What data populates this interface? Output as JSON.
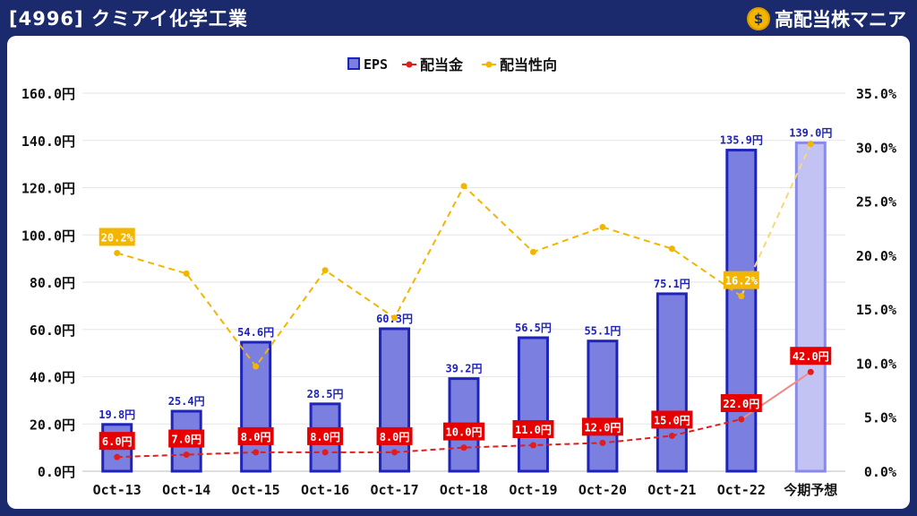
{
  "header": {
    "title": "[4996] クミアイ化学工業",
    "brand": "高配当株マニア",
    "brand_icon": "money-bag-icon"
  },
  "chart_data": {
    "type": "bar",
    "categories": [
      "Oct-13",
      "Oct-14",
      "Oct-15",
      "Oct-16",
      "Oct-17",
      "Oct-18",
      "Oct-19",
      "Oct-20",
      "Oct-21",
      "Oct-22",
      "今期予想"
    ],
    "series": [
      {
        "name": "EPS",
        "type": "bar",
        "axis": "left",
        "color": "#7b7fe0",
        "border": "#1f24b8",
        "values": [
          19.8,
          25.4,
          54.6,
          28.5,
          60.3,
          39.2,
          56.5,
          55.1,
          75.1,
          135.9,
          139.0
        ],
        "labels": [
          "19.8円",
          "25.4円",
          "54.6円",
          "28.5円",
          "60.3円",
          "39.2円",
          "56.5円",
          "55.1円",
          "75.1円",
          "135.9円",
          "139.0円"
        ]
      },
      {
        "name": "配当金",
        "type": "line",
        "axis": "left",
        "color": "#e21d1d",
        "values": [
          6.0,
          7.0,
          8.0,
          8.0,
          8.0,
          10.0,
          11.0,
          12.0,
          15.0,
          22.0,
          42.0
        ],
        "labels": [
          "6.0円",
          "7.0円",
          "8.0円",
          "8.0円",
          "8.0円",
          "10.0円",
          "11.0円",
          "12.0円",
          "15.0円",
          "22.0円",
          "42.0円"
        ]
      },
      {
        "name": "配当性向",
        "type": "line",
        "axis": "right",
        "color": "#f2b600",
        "values": [
          20.2,
          18.3,
          9.7,
          18.6,
          14.2,
          26.4,
          20.3,
          22.6,
          20.6,
          16.2,
          30.3
        ],
        "labels": [
          "20.2%",
          "",
          "",
          "",
          "",
          "",
          "",
          "",
          "",
          "16.2%",
          ""
        ]
      }
    ],
    "left_axis": {
      "ticks": [
        "0.0円",
        "20.0円",
        "40.0円",
        "60.0円",
        "80.0円",
        "100.0円",
        "120.0円",
        "140.0円",
        "160.0円"
      ],
      "min": 0,
      "max": 160
    },
    "right_axis": {
      "ticks": [
        "0.0%",
        "5.0%",
        "10.0%",
        "15.0%",
        "20.0%",
        "25.0%",
        "30.0%",
        "35.0%"
      ],
      "min": 0,
      "max": 35
    },
    "legend_position": "top-center",
    "grid": true
  }
}
